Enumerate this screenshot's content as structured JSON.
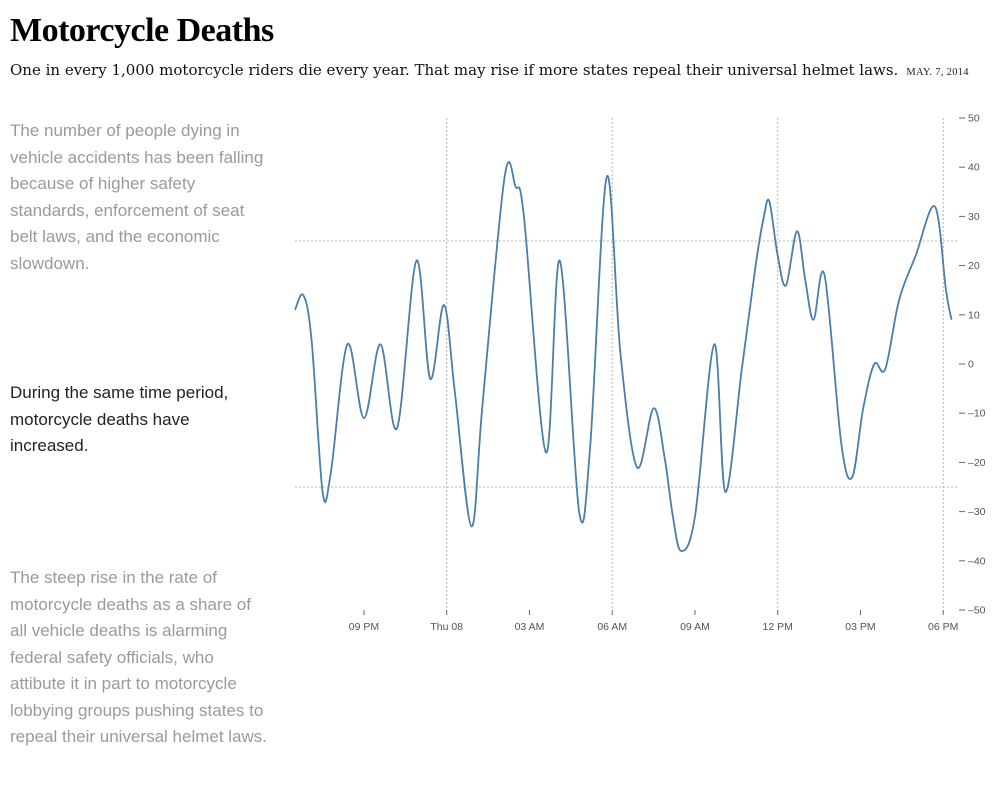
{
  "header": {
    "title": "Motorcycle Deaths",
    "subtitle": "One in every 1,000 motorcycle riders die every year. That may rise if more states repeal their universal helmet laws.",
    "date": "MAY. 7, 2014"
  },
  "annotations": [
    "The number of people dying in vehicle accidents has been falling because of higher safety standards, enforcement of seat belt laws, and the economic slowdown.",
    "During the same time period, motorcycle deaths have increased.",
    "The steep rise in the rate of motorcycle deaths as a share of all vehicle deaths is alarming federal safety officials, who attibute it in part to motorcycle lobbying groups pushing states to repeal their universal helmet laws."
  ],
  "colors": {
    "line": "#4a7eab",
    "grid": "#b5b5b5",
    "muted_text": "#9a9a9a"
  },
  "chart_data": {
    "type": "line",
    "title": "",
    "xlabel": "",
    "ylabel": "",
    "ylim": [
      -50,
      50
    ],
    "yticks": [
      -50,
      -40,
      -30,
      -20,
      -10,
      0,
      10,
      20,
      30,
      40,
      50
    ],
    "ytick_labels": [
      "–50",
      "–40",
      "–30",
      "–20",
      "–10",
      "0",
      "10",
      "20",
      "30",
      "40",
      "50"
    ],
    "xlim_hours": [
      0,
      24
    ],
    "xticks": [
      {
        "hour": 2.5,
        "label": "09 PM"
      },
      {
        "hour": 5.5,
        "label": "Thu 08"
      },
      {
        "hour": 8.5,
        "label": "03 AM"
      },
      {
        "hour": 11.5,
        "label": "06 AM"
      },
      {
        "hour": 14.5,
        "label": "09 AM"
      },
      {
        "hour": 17.5,
        "label": "12 PM"
      },
      {
        "hour": 20.5,
        "label": "03 PM"
      },
      {
        "hour": 23.5,
        "label": "06 PM"
      }
    ],
    "x_gridlines_hours": [
      5.5,
      11.5,
      17.5,
      23.5
    ],
    "y_gridlines": [
      -25,
      25
    ],
    "series": [
      {
        "values": [
          [
            0,
            11
          ],
          [
            0.3,
            14
          ],
          [
            0.6,
            5
          ],
          [
            1,
            -26
          ],
          [
            1.3,
            -22
          ],
          [
            1.9,
            4
          ],
          [
            2.5,
            -11
          ],
          [
            3.1,
            4
          ],
          [
            3.7,
            -13
          ],
          [
            4.4,
            21
          ],
          [
            4.9,
            -3
          ],
          [
            5.4,
            12
          ],
          [
            5.8,
            -6
          ],
          [
            6.4,
            -33
          ],
          [
            6.8,
            -8
          ],
          [
            7.6,
            38
          ],
          [
            8.0,
            36
          ],
          [
            8.3,
            30
          ],
          [
            9.1,
            -18
          ],
          [
            9.6,
            21
          ],
          [
            10.3,
            -30
          ],
          [
            10.7,
            -17
          ],
          [
            11.3,
            38
          ],
          [
            11.8,
            2
          ],
          [
            12.4,
            -21
          ],
          [
            13.0,
            -9
          ],
          [
            13.4,
            -19
          ],
          [
            13.7,
            -31
          ],
          [
            14.0,
            -38
          ],
          [
            14.5,
            -31
          ],
          [
            15.2,
            4
          ],
          [
            15.6,
            -26
          ],
          [
            16.2,
            -1
          ],
          [
            16.7,
            20
          ],
          [
            17.0,
            30
          ],
          [
            17.2,
            33
          ],
          [
            17.5,
            22
          ],
          [
            17.8,
            16
          ],
          [
            18.2,
            27
          ],
          [
            18.5,
            17
          ],
          [
            18.8,
            9
          ],
          [
            19.2,
            18
          ],
          [
            19.8,
            -16
          ],
          [
            20.2,
            -23
          ],
          [
            20.6,
            -9
          ],
          [
            21.0,
            0
          ],
          [
            21.4,
            -1
          ],
          [
            21.9,
            13
          ],
          [
            22.5,
            22
          ],
          [
            23.2,
            32
          ],
          [
            23.6,
            15
          ],
          [
            23.8,
            9
          ]
        ]
      }
    ]
  }
}
